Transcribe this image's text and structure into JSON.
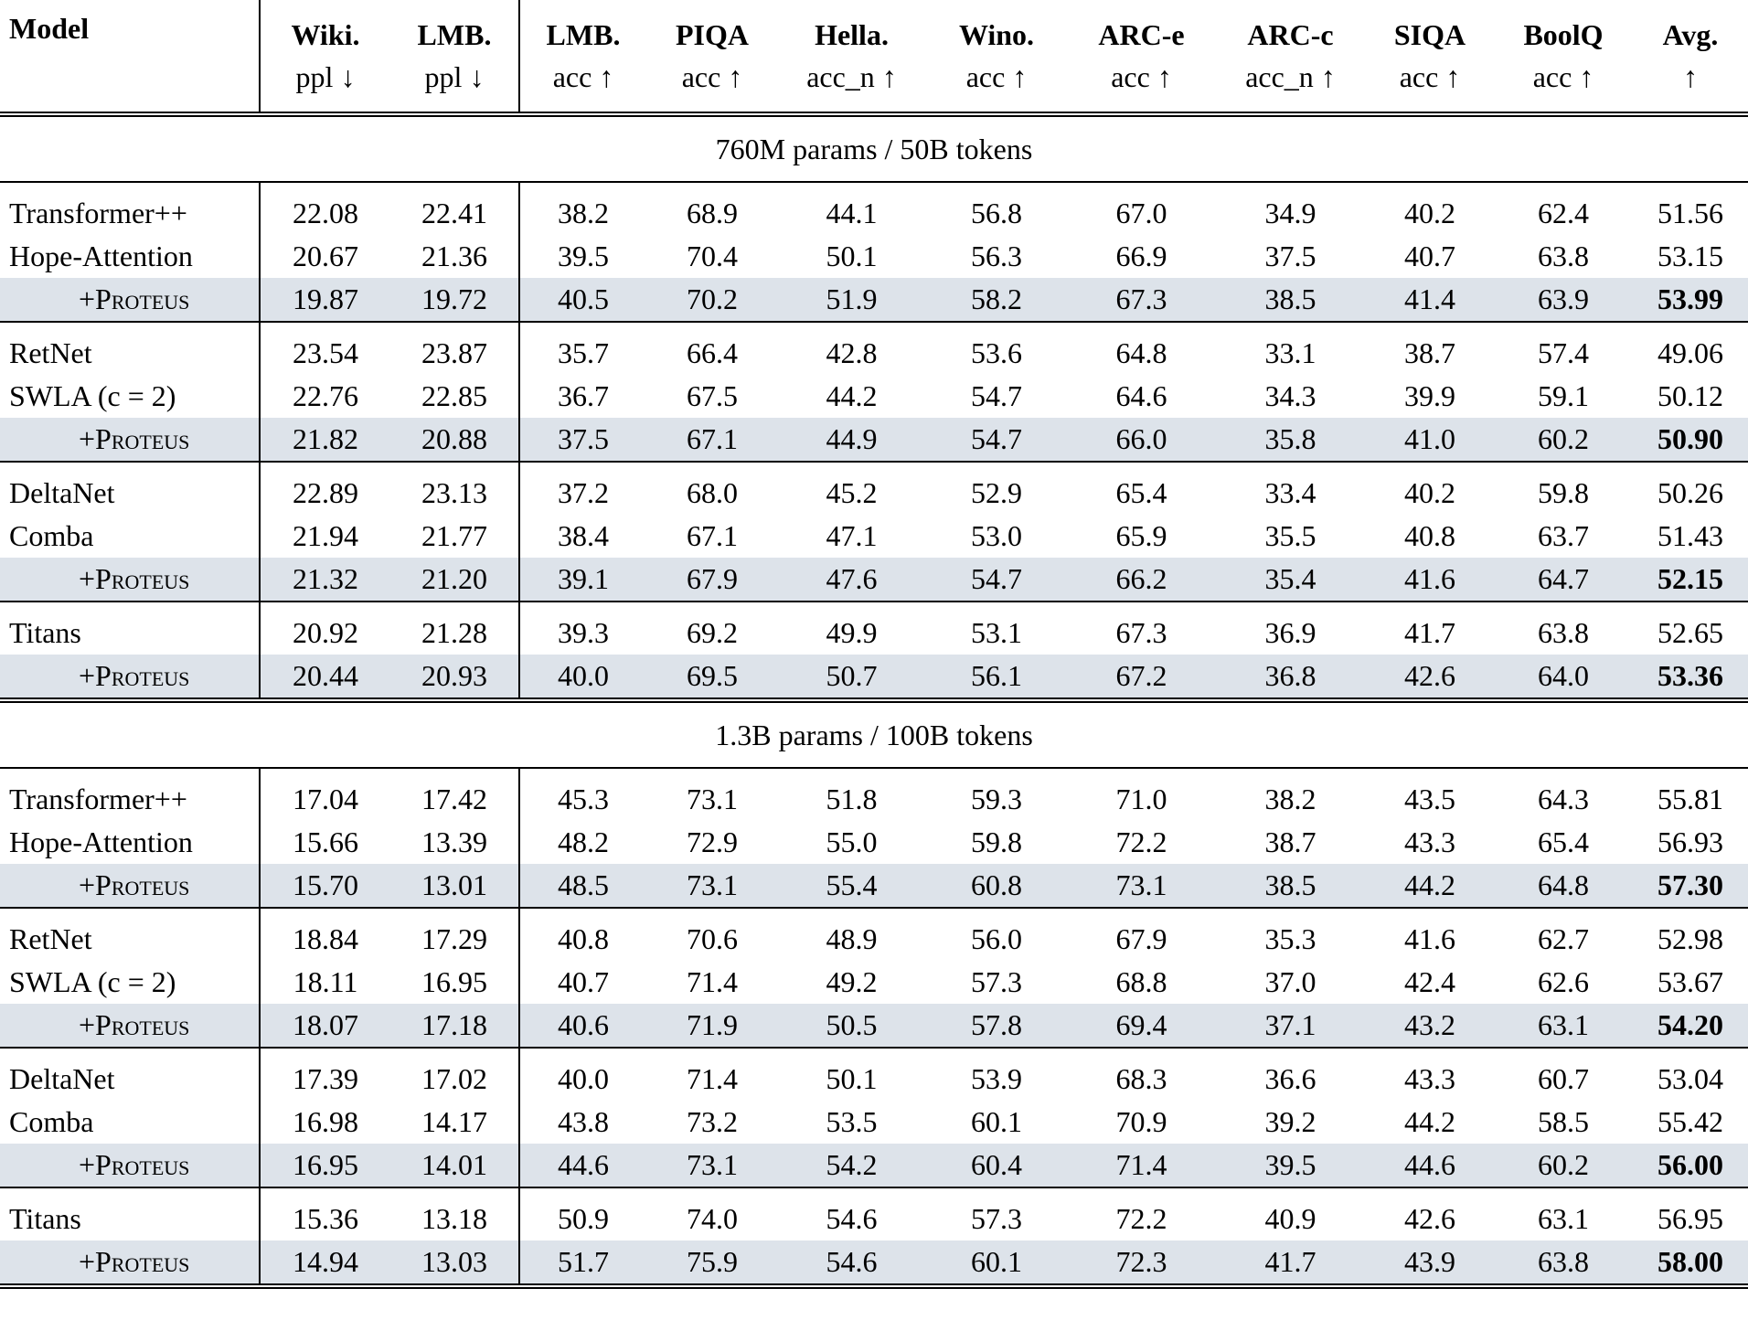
{
  "header": [
    {
      "name": "Model"
    },
    {
      "name": "Wiki.",
      "metric": "ppl ↓"
    },
    {
      "name": "LMB.",
      "metric": "ppl ↓"
    },
    {
      "name": "LMB.",
      "metric": "acc ↑"
    },
    {
      "name": "PIQA",
      "metric": "acc ↑"
    },
    {
      "name": "Hella.",
      "metric": "acc_n ↑"
    },
    {
      "name": "Wino.",
      "metric": "acc ↑"
    },
    {
      "name": "ARC-e",
      "metric": "acc ↑"
    },
    {
      "name": "ARC-c",
      "metric": "acc_n ↑"
    },
    {
      "name": "SIQA",
      "metric": "acc ↑"
    },
    {
      "name": "BoolQ",
      "metric": "acc ↑"
    },
    {
      "name": "Avg.",
      "metric": "↑"
    }
  ],
  "sections": [
    {
      "title": "760M params / 50B tokens",
      "groups": [
        [
          [
            "Transformer++",
            "22.08",
            "22.41",
            "38.2",
            "68.9",
            "44.1",
            "56.8",
            "67.0",
            "34.9",
            "40.2",
            "62.4",
            "51.56"
          ],
          [
            "Hope-Attention",
            "20.67",
            "21.36",
            "39.5",
            "70.4",
            "50.1",
            "56.3",
            "66.9",
            "37.5",
            "40.7",
            "63.8",
            "53.15"
          ],
          [
            "+Proteus",
            "19.87",
            "19.72",
            "40.5",
            "70.2",
            "51.9",
            "58.2",
            "67.3",
            "38.5",
            "41.4",
            "63.9",
            "53.99"
          ]
        ],
        [
          [
            "RetNet",
            "23.54",
            "23.87",
            "35.7",
            "66.4",
            "42.8",
            "53.6",
            "64.8",
            "33.1",
            "38.7",
            "57.4",
            "49.06"
          ],
          [
            "SWLA (c = 2)",
            "22.76",
            "22.85",
            "36.7",
            "67.5",
            "44.2",
            "54.7",
            "64.6",
            "34.3",
            "39.9",
            "59.1",
            "50.12"
          ],
          [
            "+Proteus",
            "21.82",
            "20.88",
            "37.5",
            "67.1",
            "44.9",
            "54.7",
            "66.0",
            "35.8",
            "41.0",
            "60.2",
            "50.90"
          ]
        ],
        [
          [
            "DeltaNet",
            "22.89",
            "23.13",
            "37.2",
            "68.0",
            "45.2",
            "52.9",
            "65.4",
            "33.4",
            "40.2",
            "59.8",
            "50.26"
          ],
          [
            "Comba",
            "21.94",
            "21.77",
            "38.4",
            "67.1",
            "47.1",
            "53.0",
            "65.9",
            "35.5",
            "40.8",
            "63.7",
            "51.43"
          ],
          [
            "+Proteus",
            "21.32",
            "21.20",
            "39.1",
            "67.9",
            "47.6",
            "54.7",
            "66.2",
            "35.4",
            "41.6",
            "64.7",
            "52.15"
          ]
        ],
        [
          [
            "Titans",
            "20.92",
            "21.28",
            "39.3",
            "69.2",
            "49.9",
            "53.1",
            "67.3",
            "36.9",
            "41.7",
            "63.8",
            "52.65"
          ],
          [
            "+Proteus",
            "20.44",
            "20.93",
            "40.0",
            "69.5",
            "50.7",
            "56.1",
            "67.2",
            "36.8",
            "42.6",
            "64.0",
            "53.36"
          ]
        ]
      ]
    },
    {
      "title": "1.3B params / 100B tokens",
      "groups": [
        [
          [
            "Transformer++",
            "17.04",
            "17.42",
            "45.3",
            "73.1",
            "51.8",
            "59.3",
            "71.0",
            "38.2",
            "43.5",
            "64.3",
            "55.81"
          ],
          [
            "Hope-Attention",
            "15.66",
            "13.39",
            "48.2",
            "72.9",
            "55.0",
            "59.8",
            "72.2",
            "38.7",
            "43.3",
            "65.4",
            "56.93"
          ],
          [
            "+Proteus",
            "15.70",
            "13.01",
            "48.5",
            "73.1",
            "55.4",
            "60.8",
            "73.1",
            "38.5",
            "44.2",
            "64.8",
            "57.30"
          ]
        ],
        [
          [
            "RetNet",
            "18.84",
            "17.29",
            "40.8",
            "70.6",
            "48.9",
            "56.0",
            "67.9",
            "35.3",
            "41.6",
            "62.7",
            "52.98"
          ],
          [
            "SWLA (c = 2)",
            "18.11",
            "16.95",
            "40.7",
            "71.4",
            "49.2",
            "57.3",
            "68.8",
            "37.0",
            "42.4",
            "62.6",
            "53.67"
          ],
          [
            "+Proteus",
            "18.07",
            "17.18",
            "40.6",
            "71.9",
            "50.5",
            "57.8",
            "69.4",
            "37.1",
            "43.2",
            "63.1",
            "54.20"
          ]
        ],
        [
          [
            "DeltaNet",
            "17.39",
            "17.02",
            "40.0",
            "71.4",
            "50.1",
            "53.9",
            "68.3",
            "36.6",
            "43.3",
            "60.7",
            "53.04"
          ],
          [
            "Comba",
            "16.98",
            "14.17",
            "43.8",
            "73.2",
            "53.5",
            "60.1",
            "70.9",
            "39.2",
            "44.2",
            "58.5",
            "55.42"
          ],
          [
            "+Proteus",
            "16.95",
            "14.01",
            "44.6",
            "73.1",
            "54.2",
            "60.4",
            "71.4",
            "39.5",
            "44.6",
            "60.2",
            "56.00"
          ]
        ],
        [
          [
            "Titans",
            "15.36",
            "13.18",
            "50.9",
            "74.0",
            "54.6",
            "57.3",
            "72.2",
            "40.9",
            "42.6",
            "63.1",
            "56.95"
          ],
          [
            "+Proteus",
            "14.94",
            "13.03",
            "51.7",
            "75.9",
            "54.6",
            "60.1",
            "72.3",
            "41.7",
            "43.9",
            "63.8",
            "58.00"
          ]
        ]
      ]
    }
  ]
}
